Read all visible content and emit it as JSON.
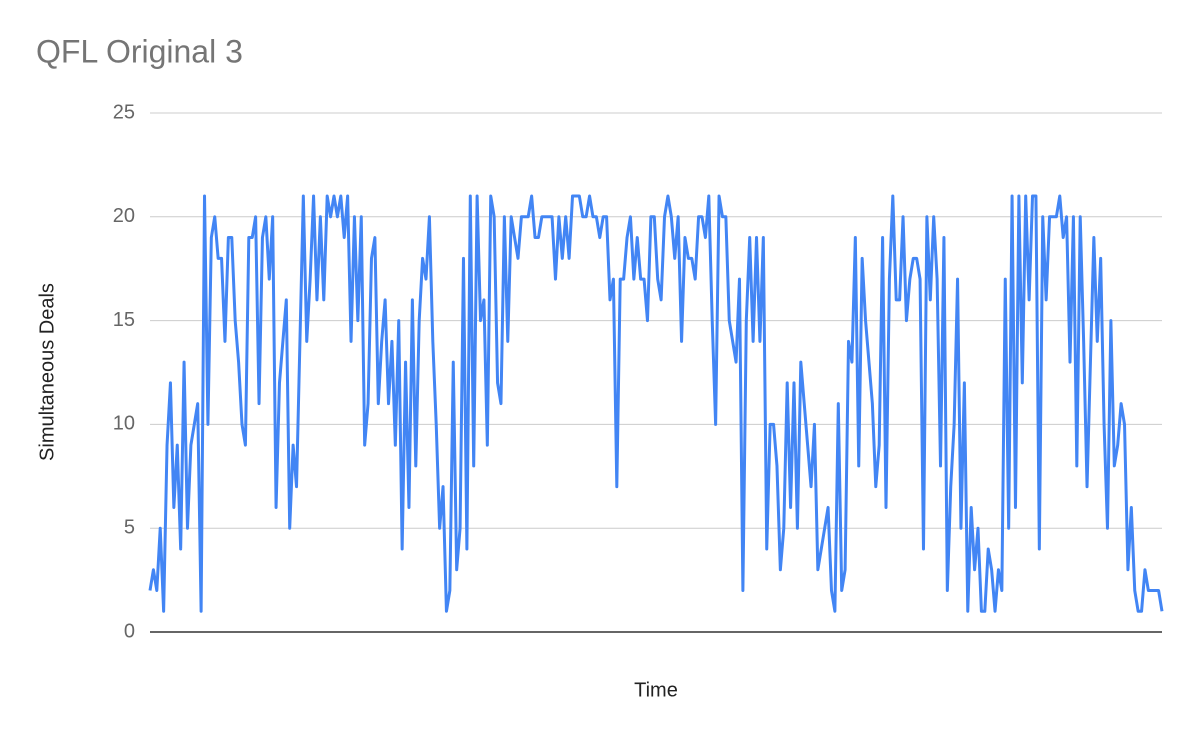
{
  "chart_data": {
    "type": "line",
    "title": "QFL Original 3",
    "x_label": "Time",
    "y_label": "Simultaneous Deals",
    "series": [
      {
        "name": "Simultaneous Deals",
        "color": "#4285f4",
        "values": [
          2,
          3,
          2,
          5,
          1,
          9,
          12,
          6,
          9,
          4,
          13,
          5,
          9,
          10,
          11,
          1,
          21,
          10,
          19,
          20,
          18,
          18,
          14,
          19,
          19,
          15,
          13,
          10,
          9,
          19,
          19,
          20,
          11,
          19,
          20,
          17,
          20,
          6,
          12,
          14,
          16,
          5,
          9,
          7,
          14,
          21,
          14,
          17,
          21,
          16,
          20,
          16,
          21,
          20,
          21,
          20,
          21,
          19,
          21,
          14,
          20,
          15,
          20,
          9,
          11,
          18,
          19,
          11,
          14,
          16,
          11,
          14,
          9,
          15,
          4,
          13,
          6,
          16,
          8,
          15,
          18,
          17,
          20,
          14,
          10,
          5,
          7,
          1,
          2,
          13,
          3,
          5,
          18,
          4,
          21,
          8,
          21,
          15,
          16,
          9,
          21,
          20,
          12,
          11,
          20,
          14,
          20,
          19,
          18,
          20,
          20,
          20,
          21,
          19,
          19,
          20,
          20,
          20,
          20,
          17,
          20,
          18,
          20,
          18,
          21,
          21,
          21,
          20,
          20,
          21,
          20,
          20,
          19,
          20,
          20,
          16,
          17,
          7,
          17,
          17,
          19,
          20,
          17,
          19,
          17,
          17,
          15,
          20,
          20,
          17,
          16,
          20,
          21,
          20,
          18,
          20,
          14,
          19,
          18,
          18,
          17,
          20,
          20,
          19,
          21,
          15,
          10,
          21,
          20,
          20,
          15,
          14,
          13,
          17,
          2,
          15,
          19,
          14,
          19,
          14,
          19,
          4,
          10,
          10,
          8,
          3,
          5,
          12,
          6,
          12,
          5,
          13,
          11,
          9,
          7,
          10,
          3,
          4,
          5,
          6,
          2,
          1,
          11,
          2,
          3,
          14,
          13,
          19,
          8,
          18,
          15,
          13,
          11,
          7,
          9,
          19,
          6,
          17,
          21,
          16,
          16,
          20,
          15,
          17,
          18,
          18,
          17,
          4,
          20,
          16,
          20,
          17,
          8,
          19,
          2,
          7,
          10,
          17,
          5,
          12,
          1,
          6,
          3,
          5,
          1,
          1,
          4,
          3,
          1,
          3,
          2,
          17,
          5,
          21,
          6,
          21,
          12,
          21,
          16,
          21,
          21,
          4,
          20,
          16,
          20,
          20,
          20,
          21,
          19,
          20,
          13,
          20,
          8,
          20,
          14,
          7,
          13,
          19,
          14,
          18,
          10,
          5,
          15,
          8,
          9,
          11,
          10,
          3,
          6,
          2,
          1,
          1,
          3,
          2,
          2,
          2,
          2,
          1
        ]
      }
    ],
    "ylim": [
      0,
      25
    ],
    "yticks": [
      0,
      5,
      10,
      15,
      20,
      25
    ],
    "grid": true
  }
}
